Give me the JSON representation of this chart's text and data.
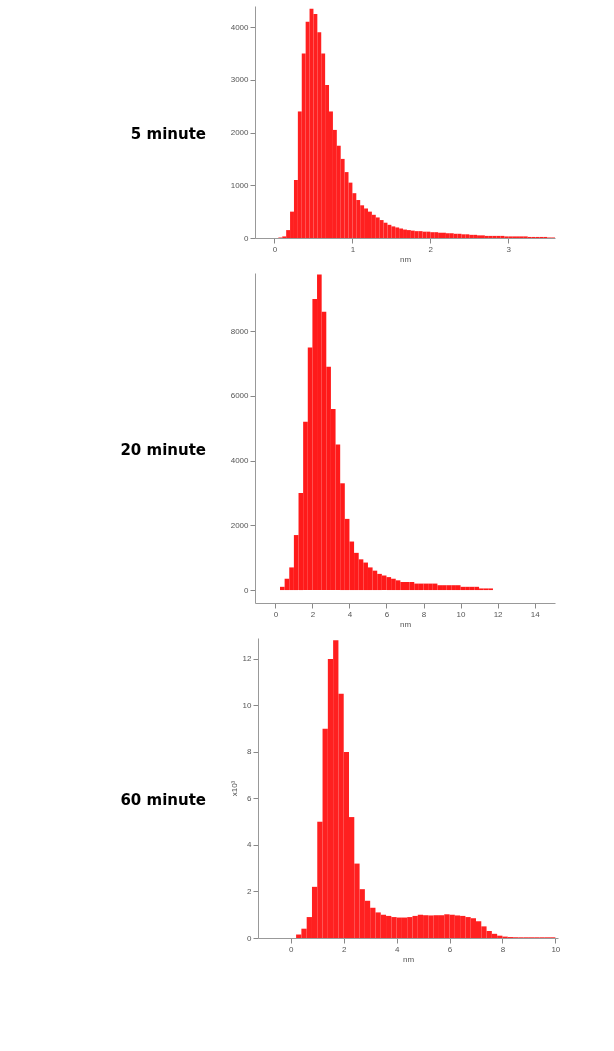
{
  "chart_data": [
    {
      "type": "histogram",
      "title": "5 minute",
      "xlabel": "nm",
      "color": "#ff2020",
      "xlim": [
        -0.25,
        3.6
      ],
      "ylim": [
        0,
        4400
      ],
      "xticks": [
        0,
        1,
        2,
        3
      ],
      "yticks": [
        0,
        1000,
        2000,
        3000,
        4000
      ],
      "bins": [
        0,
        0.05,
        0.1,
        0.15,
        0.2,
        0.25,
        0.3,
        0.35,
        0.4,
        0.45,
        0.5,
        0.55,
        0.6,
        0.65,
        0.7,
        0.75,
        0.8,
        0.85,
        0.9,
        0.95,
        1,
        1.05,
        1.1,
        1.15,
        1.2,
        1.25,
        1.3,
        1.35,
        1.4,
        1.45,
        1.5,
        1.55,
        1.6,
        1.65,
        1.7,
        1.75,
        1.8,
        1.85,
        1.9,
        1.95,
        2,
        2.05,
        2.1,
        2.15,
        2.2,
        2.25,
        2.3,
        2.35,
        2.4,
        2.45,
        2.5,
        2.55,
        2.6,
        2.65,
        2.7,
        2.75,
        2.8,
        2.85,
        2.9,
        2.95,
        3,
        3.05,
        3.1,
        3.15,
        3.2,
        3.25,
        3.3,
        3.35,
        3.4,
        3.45,
        3.5,
        3.55,
        3.6
      ],
      "values": [
        0,
        10,
        30,
        150,
        500,
        1100,
        2400,
        3500,
        4100,
        4350,
        4250,
        3900,
        3500,
        2900,
        2400,
        2050,
        1750,
        1500,
        1250,
        1050,
        850,
        720,
        620,
        560,
        500,
        440,
        390,
        340,
        290,
        250,
        220,
        200,
        180,
        160,
        150,
        140,
        130,
        130,
        120,
        120,
        110,
        110,
        100,
        100,
        90,
        90,
        80,
        80,
        70,
        70,
        60,
        60,
        50,
        50,
        40,
        40,
        40,
        40,
        40,
        30,
        30,
        30,
        30,
        30,
        30,
        20,
        20,
        20,
        20,
        20,
        10,
        10
      ]
    },
    {
      "type": "histogram",
      "title": "20 minute",
      "xlabel": "nm",
      "color": "#ff1a1a",
      "xlim": [
        -1.1,
        15.1
      ],
      "ylim": [
        -400,
        9800
      ],
      "xticks": [
        0,
        2,
        4,
        6,
        8,
        10,
        12,
        14
      ],
      "yticks": [
        0,
        2000,
        4000,
        6000,
        8000
      ],
      "bins": [
        0,
        0.25,
        0.5,
        0.75,
        1,
        1.25,
        1.5,
        1.75,
        2,
        2.25,
        2.5,
        2.75,
        3,
        3.25,
        3.5,
        3.75,
        4,
        4.25,
        4.5,
        4.75,
        5,
        5.25,
        5.5,
        5.75,
        6,
        6.25,
        6.5,
        6.75,
        7,
        7.25,
        7.5,
        7.75,
        8,
        8.25,
        8.5,
        8.75,
        9,
        9.25,
        9.5,
        9.75,
        10,
        10.25,
        10.5,
        10.75,
        11,
        11.25,
        11.5,
        11.75,
        12,
        12.25,
        12.5
      ],
      "values": [
        0,
        100,
        350,
        700,
        1700,
        3000,
        5200,
        7500,
        9000,
        9750,
        8600,
        6900,
        5600,
        4500,
        3300,
        2200,
        1500,
        1150,
        950,
        850,
        700,
        600,
        500,
        450,
        400,
        350,
        300,
        250,
        250,
        250,
        200,
        200,
        200,
        200,
        200,
        150,
        150,
        150,
        150,
        150,
        100,
        100,
        100,
        100,
        50,
        50,
        50,
        0,
        0,
        0
      ]
    },
    {
      "type": "histogram",
      "title": "60 minute",
      "xlabel": "nm",
      "ylabel": "x10³",
      "color": "#ff2020",
      "xlim": [
        -1.24,
        10.1
      ],
      "ylim": [
        0,
        12.9
      ],
      "xticks": [
        0,
        2,
        4,
        6,
        8,
        10
      ],
      "yticks": [
        0,
        2,
        4,
        6,
        8,
        10,
        12
      ],
      "bins": [
        0,
        0.2,
        0.4,
        0.6,
        0.8,
        1,
        1.2,
        1.4,
        1.6,
        1.8,
        2,
        2.2,
        2.4,
        2.6,
        2.8,
        3,
        3.2,
        3.4,
        3.6,
        3.8,
        4,
        4.2,
        4.4,
        4.6,
        4.8,
        5,
        5.2,
        5.4,
        5.6,
        5.8,
        6,
        6.2,
        6.4,
        6.6,
        6.8,
        7,
        7.2,
        7.4,
        7.6,
        7.8,
        8,
        8.2,
        8.4,
        8.6,
        8.8,
        9,
        9.2,
        9.4,
        9.6,
        9.8,
        10
      ],
      "values": [
        null,
        0.15,
        0.4,
        0.9,
        2.2,
        5.0,
        9.0,
        12.0,
        12.8,
        10.5,
        8.0,
        5.2,
        3.2,
        2.1,
        1.6,
        1.3,
        1.1,
        1.0,
        0.95,
        0.9,
        0.88,
        0.88,
        0.9,
        0.95,
        1.0,
        0.98,
        0.97,
        0.98,
        0.98,
        1.02,
        1.0,
        0.97,
        0.95,
        0.9,
        0.85,
        0.72,
        0.5,
        0.3,
        0.18,
        0.1,
        0.06,
        0.04,
        0.03,
        0.03,
        0.03,
        0.03,
        0.03,
        0.03,
        0.03,
        0.03
      ]
    }
  ]
}
